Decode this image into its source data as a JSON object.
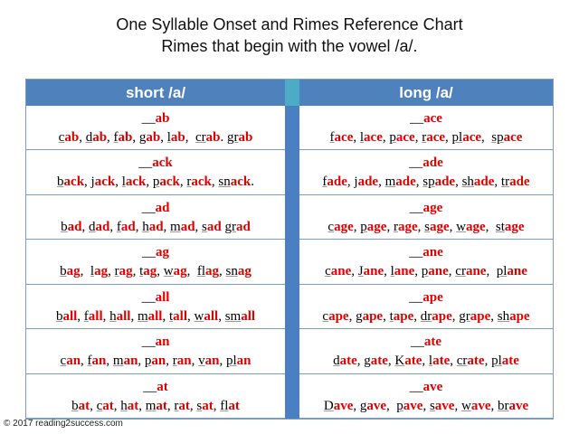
{
  "title": [
    "One Syllable Onset and Rimes Reference Chart",
    "Rimes that begin with the vowel /a/."
  ],
  "table": {
    "headers": [
      "short /a/",
      "long /a/"
    ],
    "columns": [
      [
        [
          "__ab",
          "cab, dab, fab, gab, lab,  crab. grab"
        ],
        [
          "__ack",
          "back, jack, lack, pack, rack, snack."
        ],
        [
          "__ad",
          "bad, dad, fad, had, mad, sad grad"
        ],
        [
          "__ag",
          "bag,  lag, rag, tag, wag,  flag, snag"
        ],
        [
          "__all",
          "ball, fall, hall, mall, tall, wall, small"
        ],
        [
          "__an",
          "can, fan, man, pan, ran, van, plan"
        ],
        [
          "__at",
          "bat, cat, hat, mat, rat, sat, flat"
        ]
      ],
      [
        [
          "__ace",
          "face, lace, pace, race, place,  space"
        ],
        [
          "__ade",
          "fade, jade, made, spade, shade, trade"
        ],
        [
          "__age",
          "cage, page, rage, sage, wage,  stage"
        ],
        [
          "__ane",
          "cane, Jane, lane, pane, crane,  plane"
        ],
        [
          "__ape",
          "cape, gape, tape, drape, grape, shape"
        ],
        [
          "__ate",
          "date, gate, Kate, late, crate, plate"
        ],
        [
          "__ave",
          "Dave, gave,  pave, save, wave, brave"
        ]
      ]
    ]
  },
  "footer": "© 2017 reading2success.com"
}
